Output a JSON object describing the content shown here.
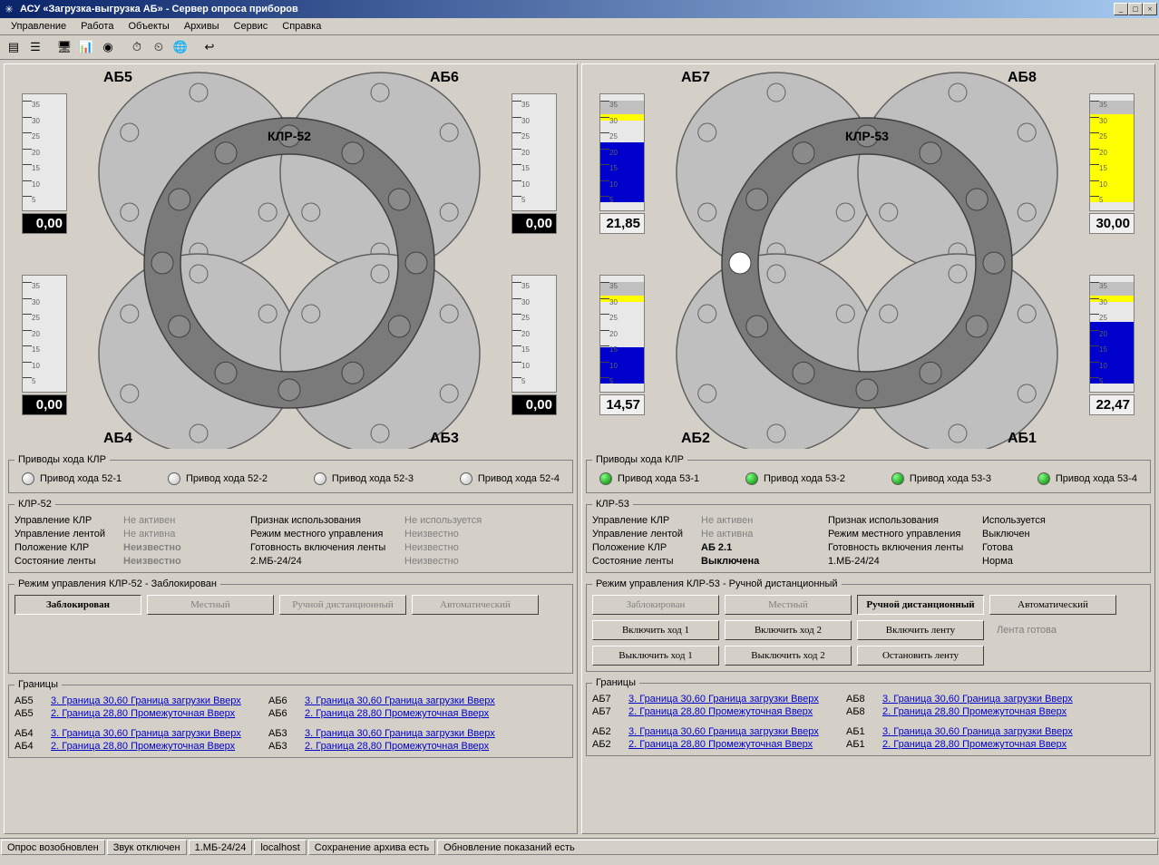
{
  "window_title": "АСУ «Загрузка-выгрузка АБ» - Сервер опроса приборов",
  "menu": [
    "Управление",
    "Работа",
    "Объекты",
    "Архивы",
    "Сервис",
    "Справка"
  ],
  "toolbar_icons": [
    {
      "name": "table-icon",
      "glyph": "▤"
    },
    {
      "name": "list-icon",
      "glyph": "☰"
    },
    {
      "name": "monitor-icon",
      "glyph": "🖥"
    },
    {
      "name": "chart-icon",
      "glyph": "📊"
    },
    {
      "name": "gauge-icon",
      "glyph": "◉"
    },
    {
      "name": "clock-red-icon",
      "glyph": "⏱"
    },
    {
      "name": "clock-stop-icon",
      "glyph": "⏲"
    },
    {
      "name": "globe-icon",
      "glyph": "🌐"
    },
    {
      "name": "exit-icon",
      "glyph": "↩"
    }
  ],
  "left": {
    "klr_label": "КЛР-52",
    "ab_labels": {
      "tl": "АБ5",
      "tr": "АБ6",
      "bl": "АБ4",
      "br": "АБ3"
    },
    "gauges": {
      "tl": {
        "value": "0,00",
        "dark": true,
        "fills": []
      },
      "tr": {
        "value": "0,00",
        "dark": true,
        "fills": []
      },
      "bl": {
        "value": "0,00",
        "dark": true,
        "fills": []
      },
      "br": {
        "value": "0,00",
        "dark": true,
        "fills": []
      }
    },
    "gauge_ticks": [
      35,
      30,
      25,
      20,
      15,
      10,
      5
    ],
    "drives_title": "Приводы хода КЛР",
    "drives": [
      {
        "label": "Привод хода 52-1",
        "on": false
      },
      {
        "label": "Привод хода 52-2",
        "on": false
      },
      {
        "label": "Привод хода 52-3",
        "on": false
      },
      {
        "label": "Привод хода 52-4",
        "on": false
      }
    ],
    "status_title": "КЛР-52",
    "status": [
      {
        "l": "Управление КЛР",
        "v": "Не активен",
        "gray": true
      },
      {
        "l": "Управление лентой",
        "v": "Не активна",
        "gray": true
      },
      {
        "l": "Положение КЛР",
        "v": "Неизвестно",
        "gray": true,
        "bold": true
      },
      {
        "l": "Состояние ленты",
        "v": "Неизвестно",
        "gray": true,
        "bold": true
      }
    ],
    "status2": [
      {
        "l": "Признак использования",
        "v": "Не используется",
        "gray": true
      },
      {
        "l": "Режим местного управления",
        "v": "Неизвестно",
        "gray": true
      },
      {
        "l": "Готовность включения ленты",
        "v": "Неизвестно",
        "gray": true
      },
      {
        "l": "2.МБ-24/24",
        "v": "Неизвестно",
        "gray": true
      }
    ],
    "mode_title": "Режим управления КЛР-52 - Заблокирован",
    "mode_buttons": [
      {
        "label": "Заблокирован",
        "active": true,
        "enabled": true
      },
      {
        "label": "Местный",
        "active": false,
        "enabled": false
      },
      {
        "label": "Ручной дистанционный",
        "active": false,
        "enabled": false
      },
      {
        "label": "Автоматический",
        "active": false,
        "enabled": false
      }
    ],
    "action_buttons_visible": false,
    "limits_title": "Границы",
    "limits": [
      {
        "c": "АБ5",
        "t": "3. Граница 30,60 Граница загрузки Вверх"
      },
      {
        "c": "АБ6",
        "t": "3. Граница 30,60 Граница загрузки Вверх"
      },
      {
        "c": "АБ5",
        "t": "2. Граница 28,80 Промежуточная Вверх"
      },
      {
        "c": "АБ6",
        "t": "2. Граница 28,80 Промежуточная Вверх"
      },
      {
        "c": "АБ4",
        "t": "3. Граница 30,60 Граница загрузки Вверх"
      },
      {
        "c": "АБ3",
        "t": "3. Граница 30,60 Граница загрузки Вверх"
      },
      {
        "c": "АБ4",
        "t": "2. Граница 28,80 Промежуточная Вверх"
      },
      {
        "c": "АБ3",
        "t": "2. Граница 28,80 Промежуточная Вверх"
      }
    ]
  },
  "right": {
    "klr_label": "КЛР-53",
    "ab_labels": {
      "tl": "АБ7",
      "tr": "АБ8",
      "bl": "АБ2",
      "br": "АБ1"
    },
    "gauges": {
      "tl": {
        "value": "21,85",
        "dark": false,
        "fills": [
          {
            "color": "#c0c0c0",
            "from": 35,
            "to": 30.6
          },
          {
            "color": "#ffff00",
            "from": 30.6,
            "to": 28.8
          },
          {
            "color": "#0000cc",
            "from": 21.85,
            "to": 3
          }
        ],
        "markers": true
      },
      "tr": {
        "value": "30,00",
        "dark": false,
        "fills": [
          {
            "color": "#c0c0c0",
            "from": 35,
            "to": 30.6
          },
          {
            "color": "#ffff00",
            "from": 30.6,
            "to": 3
          }
        ],
        "markers": true
      },
      "bl": {
        "value": "14,57",
        "dark": false,
        "fills": [
          {
            "color": "#c0c0c0",
            "from": 35,
            "to": 30.6
          },
          {
            "color": "#ffff00",
            "from": 30.6,
            "to": 28.8
          },
          {
            "color": "#0000cc",
            "from": 14.57,
            "to": 3
          }
        ],
        "markers": true
      },
      "br": {
        "value": "22,47",
        "dark": false,
        "fills": [
          {
            "color": "#c0c0c0",
            "from": 35,
            "to": 30.6
          },
          {
            "color": "#ffff00",
            "from": 30.6,
            "to": 28.8
          },
          {
            "color": "#0000cc",
            "from": 22.47,
            "to": 3
          }
        ],
        "markers": true
      }
    },
    "gauge_ticks": [
      35,
      30,
      25,
      20,
      15,
      10,
      5
    ],
    "drives_title": "Приводы хода КЛР",
    "drives": [
      {
        "label": "Привод хода 53-1",
        "on": true
      },
      {
        "label": "Привод хода 53-2",
        "on": true
      },
      {
        "label": "Привод хода 53-3",
        "on": true
      },
      {
        "label": "Привод хода 53-4",
        "on": true
      }
    ],
    "status_title": "КЛР-53",
    "status": [
      {
        "l": "Управление КЛР",
        "v": "Не активен",
        "gray": true
      },
      {
        "l": "Управление лентой",
        "v": "Не активна",
        "gray": true
      },
      {
        "l": "Положение КЛР",
        "v": "АБ 2.1",
        "gray": false,
        "bold": true
      },
      {
        "l": "Состояние ленты",
        "v": "Выключена",
        "gray": false,
        "bold": true
      }
    ],
    "status2": [
      {
        "l": "Признак использования",
        "v": "Используется",
        "gray": false
      },
      {
        "l": "Режим местного управления",
        "v": "Выключен",
        "gray": false
      },
      {
        "l": "Готовность включения ленты",
        "v": "Готова",
        "gray": false
      },
      {
        "l": "1.МБ-24/24",
        "v": "Норма",
        "gray": false
      }
    ],
    "mode_title": "Режим управления КЛР-53 - Ручной дистанционный",
    "mode_buttons": [
      {
        "label": "Заблокирован",
        "active": false,
        "enabled": false
      },
      {
        "label": "Местный",
        "active": false,
        "enabled": false
      },
      {
        "label": "Ручной дистанционный",
        "active": true,
        "enabled": true
      },
      {
        "label": "Автоматический",
        "active": false,
        "enabled": true
      }
    ],
    "action_buttons_visible": true,
    "action_rows": [
      [
        {
          "label": "Включить ход 1"
        },
        {
          "label": "Включить ход 2"
        },
        {
          "label": "Включить ленту"
        },
        {
          "text": "Лента готова"
        }
      ],
      [
        {
          "label": "Выключить ход 1"
        },
        {
          "label": "Выключить ход 2"
        },
        {
          "label": "Остановить ленту"
        }
      ]
    ],
    "limits_title": "Границы",
    "limits": [
      {
        "c": "АБ7",
        "t": "3. Граница 30,60 Граница загрузки Вверх"
      },
      {
        "c": "АБ8",
        "t": "3. Граница 30,60 Граница загрузки Вверх"
      },
      {
        "c": "АБ7",
        "t": "2. Граница 28,80 Промежуточная Вверх"
      },
      {
        "c": "АБ8",
        "t": "2. Граница 28,80 Промежуточная Вверх"
      },
      {
        "c": "АБ2",
        "t": "3. Граница 30,60 Граница загрузки Вверх"
      },
      {
        "c": "АБ1",
        "t": "3. Граница 30,60 Граница загрузки Вверх"
      },
      {
        "c": "АБ2",
        "t": "2. Граница 28,80 Промежуточная Вверх"
      },
      {
        "c": "АБ1",
        "t": "2. Граница 28,80 Промежуточная Вверх"
      }
    ],
    "highlight_bolt_index": 9
  },
  "statusbar": [
    "Опрос возобновлен",
    "Звук отключен",
    "1.МБ-24/24",
    "localhost",
    "Сохранение архива есть",
    "Обновление показаний есть"
  ],
  "colors": {
    "bg": "#d4d0c8",
    "disc": "#bfbfbf",
    "disc_stroke": "#606060",
    "ring": "#7a7a7a",
    "ring_stroke": "#404040",
    "bolt": "#8a8a8a",
    "bolt_light": "#ffffff"
  }
}
